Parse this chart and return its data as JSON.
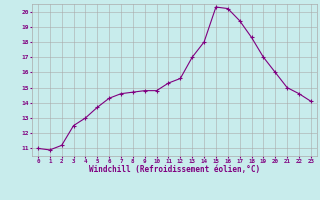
{
  "x": [
    0,
    1,
    2,
    3,
    4,
    5,
    6,
    7,
    8,
    9,
    10,
    11,
    12,
    13,
    14,
    15,
    16,
    17,
    18,
    19,
    20,
    21,
    22,
    23
  ],
  "y": [
    11.0,
    10.9,
    11.2,
    12.5,
    13.0,
    13.7,
    14.3,
    14.6,
    14.7,
    14.8,
    14.8,
    15.3,
    15.6,
    17.0,
    18.0,
    20.3,
    20.2,
    19.4,
    18.3,
    17.0,
    16.0,
    15.0,
    14.6,
    14.1
  ],
  "xlim": [
    -0.5,
    23.5
  ],
  "ylim": [
    10.5,
    20.5
  ],
  "yticks": [
    11,
    12,
    13,
    14,
    15,
    16,
    17,
    18,
    19,
    20
  ],
  "xticks": [
    0,
    1,
    2,
    3,
    4,
    5,
    6,
    7,
    8,
    9,
    10,
    11,
    12,
    13,
    14,
    15,
    16,
    17,
    18,
    19,
    20,
    21,
    22,
    23
  ],
  "xlabel": "Windchill (Refroidissement éolien,°C)",
  "line_color": "#800080",
  "marker": "+",
  "marker_size": 3,
  "background_color": "#c8ecec",
  "grid_color": "#aaaaaa",
  "label_color": "#800080",
  "tick_color": "#800080"
}
